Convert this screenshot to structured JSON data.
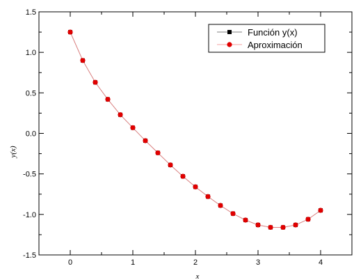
{
  "chart_data": {
    "type": "line",
    "xlabel": "x",
    "ylabel": "y(x)",
    "xlim": [
      -0.5,
      4.5
    ],
    "ylim": [
      -1.5,
      1.5
    ],
    "xticks": [
      0,
      1,
      2,
      3,
      4
    ],
    "yticks": [
      1.5,
      1.0,
      0.5,
      0.0,
      -0.5,
      -1.0,
      -1.5
    ],
    "xtick_labels": [
      "0",
      "1",
      "2",
      "3",
      "4"
    ],
    "ytick_labels": [
      "1.5",
      "1.0",
      "0.5",
      "0.0",
      "-0.5",
      "-1.0",
      "-1.5"
    ],
    "grid": false,
    "legend_position": "top-right",
    "x": [
      0,
      0.2,
      0.4,
      0.6,
      0.8,
      1.0,
      1.2,
      1.4,
      1.6,
      1.8,
      2.0,
      2.2,
      2.4,
      2.6,
      2.8,
      3.0,
      3.2,
      3.4,
      3.6,
      3.8,
      4.0
    ],
    "series": [
      {
        "name": "Función y(x)",
        "marker": "square",
        "color": "#000000",
        "values": [
          1.25,
          0.9,
          0.63,
          0.42,
          0.23,
          0.07,
          -0.09,
          -0.24,
          -0.39,
          -0.53,
          -0.66,
          -0.78,
          -0.89,
          -0.99,
          -1.07,
          -1.13,
          -1.16,
          -1.16,
          -1.13,
          -1.06,
          -0.95
        ]
      },
      {
        "name": "Aproximación",
        "marker": "circle",
        "color": "#e00000",
        "values": [
          1.25,
          0.9,
          0.63,
          0.42,
          0.23,
          0.07,
          -0.09,
          -0.24,
          -0.39,
          -0.53,
          -0.66,
          -0.78,
          -0.89,
          -0.99,
          -1.07,
          -1.13,
          -1.16,
          -1.16,
          -1.13,
          -1.06,
          -0.95
        ]
      }
    ]
  }
}
